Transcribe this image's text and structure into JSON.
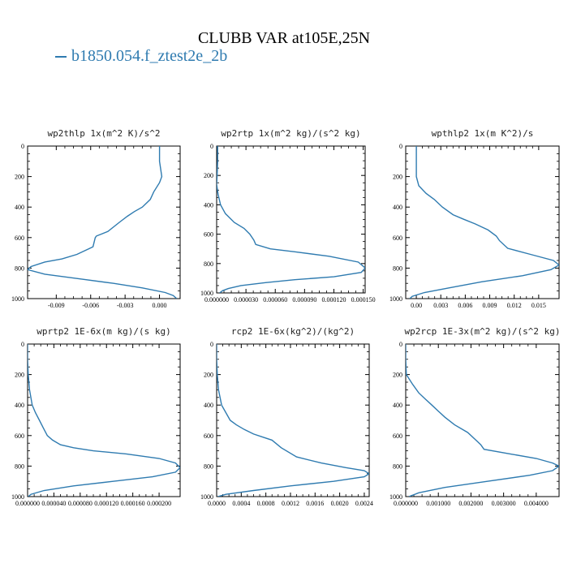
{
  "title": "CLUBB VAR at105E,25N",
  "legend": {
    "label": "b1850.054.f_ztest2e_2b",
    "color": "#2f7bb0"
  },
  "chart_data": [
    {
      "type": "line",
      "title": "wp2thlp  1x(m^2 K)/s^2",
      "xlim": [
        -0.0115,
        0.0018
      ],
      "ylim": [
        1000,
        0
      ],
      "xticks": [
        -0.009,
        -0.006,
        -0.003,
        0.0
      ],
      "xtick_labels": [
        "-0.009",
        "-0.006",
        "-0.003",
        "0.000"
      ],
      "yticks": [
        0,
        200,
        400,
        600,
        800,
        1000
      ],
      "ytick_labels": [
        "0",
        "200",
        "400",
        "600",
        "800",
        "1000"
      ],
      "series": [
        {
          "x": [
            0.0,
            0.0,
            0.0002,
            0.0,
            -0.0005,
            -0.0008,
            -0.0015,
            -0.0022,
            -0.0028,
            -0.0035,
            -0.0045,
            -0.0055,
            -0.0056,
            -0.0058,
            -0.0062,
            -0.0072,
            -0.0085,
            -0.01,
            -0.0112,
            -0.0115,
            -0.01,
            -0.007,
            -0.004,
            -0.0015,
            0.0005,
            0.0012,
            0.0015
          ],
          "y": [
            0,
            100,
            200,
            240,
            300,
            350,
            400,
            430,
            460,
            500,
            560,
            590,
            600,
            660,
            675,
            710,
            740,
            760,
            790,
            810,
            840,
            870,
            900,
            930,
            960,
            980,
            1000
          ]
        }
      ]
    },
    {
      "type": "line",
      "title": "wp2rtp  1x(m^2 kg)/(s^2 kg)",
      "xlim": [
        0.0,
        0.000152
      ],
      "ylim": [
        1000,
        0
      ],
      "xticks": [
        0.0,
        3e-05,
        6e-05,
        9e-05,
        0.00012,
        0.00015
      ],
      "xtick_labels": [
        "0.000000",
        "0.000030",
        "0.000060",
        "0.000090",
        "0.000120",
        "0.000150"
      ],
      "yticks": [
        0,
        200,
        400,
        600,
        800,
        1000
      ],
      "ytick_labels": [
        "0",
        "200",
        "400",
        "600",
        "800",
        "1000"
      ],
      "series": [
        {
          "x": [
            1e-06,
            1e-06,
            5e-07,
            0.0,
            1.5e-06,
            4e-06,
            9e-06,
            1.8e-05,
            2.8e-05,
            3.4e-05,
            3.8e-05,
            4e-05,
            5.5e-05,
            8e-05,
            0.000115,
            0.000145,
            0.000152,
            0.000148,
            0.00012,
            8e-05,
            5e-05,
            2.5e-05,
            1.2e-05,
            6e-06,
            3e-06
          ],
          "y": [
            0,
            100,
            200,
            260,
            330,
            400,
            460,
            520,
            560,
            600,
            640,
            670,
            700,
            720,
            750,
            790,
            830,
            860,
            890,
            910,
            930,
            950,
            970,
            985,
            1000
          ]
        }
      ]
    },
    {
      "type": "line",
      "title": "wpthlp2  1x(m K^2)/s",
      "xlim": [
        -0.0013,
        0.0175
      ],
      "ylim": [
        1000,
        0
      ],
      "xticks": [
        0.0,
        0.003,
        0.006,
        0.009,
        0.012,
        0.015
      ],
      "xtick_labels": [
        "0.00",
        "0.003",
        "0.006",
        "0.009",
        "0.012",
        "0.015"
      ],
      "yticks": [
        0,
        200,
        400,
        600,
        800,
        1000
      ],
      "ytick_labels": [
        "0",
        "200",
        "400",
        "600",
        "800",
        "1000"
      ],
      "series": [
        {
          "x": [
            0.0,
            0.0,
            0.0,
            0.0003,
            0.0012,
            0.0022,
            0.0032,
            0.0045,
            0.0058,
            0.0072,
            0.0088,
            0.0098,
            0.0102,
            0.0112,
            0.014,
            0.0168,
            0.0175,
            0.0165,
            0.013,
            0.008,
            0.004,
            0.001,
            -0.0005,
            -0.0008
          ],
          "y": [
            0,
            100,
            200,
            260,
            310,
            350,
            400,
            450,
            480,
            510,
            550,
            590,
            620,
            670,
            710,
            750,
            780,
            810,
            850,
            890,
            930,
            960,
            985,
            1000
          ]
        }
      ]
    },
    {
      "type": "line",
      "title": "wprtp2  1E-6x(m kg)/(s kg)",
      "xlim": [
        0.0,
        0.000232
      ],
      "ylim": [
        1000,
        0
      ],
      "xticks": [
        0.0,
        4e-05,
        8e-05,
        0.00012,
        0.00016,
        0.0002
      ],
      "xtick_labels": [
        "0.000000",
        "0.000040",
        "0.000080",
        "0.000120",
        "0.000160",
        "0.000200"
      ],
      "yticks": [
        0,
        200,
        400,
        600,
        800,
        1000
      ],
      "ytick_labels": [
        "0",
        "200",
        "400",
        "600",
        "800",
        "1000"
      ],
      "series": [
        {
          "x": [
            0.0,
            0.0,
            1e-06,
            3e-06,
            7e-06,
            1.2e-05,
            1.8e-05,
            2.4e-05,
            3e-05,
            3.8e-05,
            5e-05,
            7e-05,
            0.0001,
            0.00015,
            0.0002,
            0.000225,
            0.000232,
            0.000225,
            0.00019,
            0.00013,
            7e-05,
            2.5e-05,
            5e-06,
            1e-06
          ],
          "y": [
            0,
            100,
            200,
            300,
            400,
            450,
            500,
            550,
            600,
            630,
            660,
            680,
            700,
            720,
            750,
            780,
            810,
            840,
            870,
            900,
            930,
            960,
            985,
            1000
          ]
        }
      ]
    },
    {
      "type": "line",
      "title": "rcp2  1E-6x(kg^2)/(kg^2)",
      "xlim": [
        0.0,
        0.00248
      ],
      "ylim": [
        1000,
        0
      ],
      "xticks": [
        0.0,
        0.0004,
        0.0008,
        0.0012,
        0.0016,
        0.002,
        0.0024
      ],
      "xtick_labels": [
        "0.0000",
        "0.0004",
        "0.0008",
        "0.0012",
        "0.0016",
        "0.0020",
        "0.0024"
      ],
      "yticks": [
        0,
        200,
        400,
        600,
        800,
        1000
      ],
      "ytick_labels": [
        "0",
        "200",
        "400",
        "600",
        "800",
        "1000"
      ],
      "series": [
        {
          "x": [
            0.0,
            0.0,
            1e-05,
            3e-05,
            8e-05,
            0.00015,
            0.00022,
            0.00032,
            0.00045,
            0.0006,
            0.00075,
            0.0009,
            0.00105,
            0.0013,
            0.0017,
            0.0021,
            0.0024,
            0.00248,
            0.0024,
            0.0019,
            0.0012,
            0.0006,
            0.00015,
            2e-05
          ],
          "y": [
            0,
            100,
            200,
            300,
            400,
            450,
            500,
            530,
            560,
            590,
            610,
            630,
            680,
            740,
            780,
            810,
            830,
            850,
            870,
            900,
            930,
            960,
            985,
            1000
          ]
        }
      ]
    },
    {
      "type": "line",
      "title": "wp2rcp  1E-3x(m^2 kg)/(s^2 kg)",
      "xlim": [
        0.0,
        0.0047
      ],
      "ylim": [
        1000,
        0
      ],
      "xticks": [
        0.0,
        0.001,
        0.002,
        0.003,
        0.004
      ],
      "xtick_labels": [
        "0.000000",
        "0.001000",
        "0.002000",
        "0.003000",
        "0.004000"
      ],
      "yticks": [
        0,
        200,
        400,
        600,
        800,
        1000
      ],
      "ytick_labels": [
        "0",
        "200",
        "400",
        "600",
        "800",
        "1000"
      ],
      "series": [
        {
          "x": [
            0.0,
            0.0,
            2e-05,
            0.0002,
            0.0004,
            0.0006,
            0.0008,
            0.001,
            0.0012,
            0.0015,
            0.0019,
            0.0022,
            0.0023,
            0.0024,
            0.0032,
            0.004,
            0.0045,
            0.0047,
            0.0045,
            0.0038,
            0.0025,
            0.0012,
            0.0004,
            0.0001
          ],
          "y": [
            0,
            100,
            200,
            260,
            320,
            360,
            400,
            440,
            480,
            530,
            580,
            640,
            660,
            690,
            720,
            750,
            780,
            800,
            830,
            860,
            900,
            940,
            975,
            1000
          ]
        }
      ]
    }
  ]
}
